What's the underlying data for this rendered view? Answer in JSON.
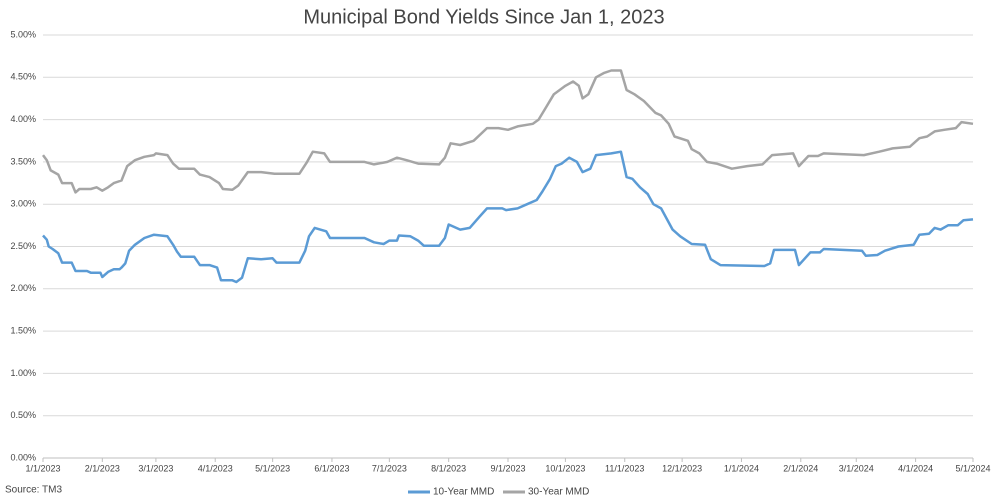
{
  "chart_data": {
    "type": "line",
    "title": "Municipal Bond Yields Since Jan 1, 2023",
    "source": "Source: TM3",
    "ylim": [
      0,
      5
    ],
    "yticks": [
      {
        "value": 0,
        "label": "0.00%"
      },
      {
        "value": 0.5,
        "label": "0.50%"
      },
      {
        "value": 1,
        "label": "1.00%"
      },
      {
        "value": 1.5,
        "label": "1.50%"
      },
      {
        "value": 2,
        "label": "2.00%"
      },
      {
        "value": 2.5,
        "label": "2.50%"
      },
      {
        "value": 3,
        "label": "3.00%"
      },
      {
        "value": 3.5,
        "label": "3.50%"
      },
      {
        "value": 4,
        "label": "4.00%"
      },
      {
        "value": 4.5,
        "label": "4.50%"
      },
      {
        "value": 5,
        "label": "5.00%"
      }
    ],
    "xlim": [
      "2023-01-01",
      "2024-05-01"
    ],
    "xticks": [
      {
        "value": "2023-01-01",
        "label": "1/1/2023"
      },
      {
        "value": "2023-02-01",
        "label": "2/1/2023"
      },
      {
        "value": "2023-03-01",
        "label": "3/1/2023"
      },
      {
        "value": "2023-04-01",
        "label": "4/1/2023"
      },
      {
        "value": "2023-05-01",
        "label": "5/1/2023"
      },
      {
        "value": "2023-06-01",
        "label": "6/1/2023"
      },
      {
        "value": "2023-07-01",
        "label": "7/1/2023"
      },
      {
        "value": "2023-08-01",
        "label": "8/1/2023"
      },
      {
        "value": "2023-09-01",
        "label": "9/1/2023"
      },
      {
        "value": "2023-10-01",
        "label": "10/1/2023"
      },
      {
        "value": "2023-11-01",
        "label": "11/1/2023"
      },
      {
        "value": "2023-12-01",
        "label": "12/1/2023"
      },
      {
        "value": "2024-01-01",
        "label": "1/1/2024"
      },
      {
        "value": "2024-02-01",
        "label": "2/1/2024"
      },
      {
        "value": "2024-03-01",
        "label": "3/1/2024"
      },
      {
        "value": "2024-04-01",
        "label": "4/1/2024"
      },
      {
        "value": "2024-05-01",
        "label": "5/1/2024"
      }
    ],
    "grid": true,
    "legend": "bottom",
    "series": [
      {
        "name": "10-Year MMD",
        "color": "#5b9bd5",
        "x": [
          "2023-01-01",
          "2023-01-03",
          "2023-01-04",
          "2023-01-06",
          "2023-01-09",
          "2023-01-11",
          "2023-01-16",
          "2023-01-18",
          "2023-01-24",
          "2023-01-26",
          "2023-01-31",
          "2023-02-01",
          "2023-02-04",
          "2023-02-07",
          "2023-02-10",
          "2023-02-11",
          "2023-02-13",
          "2023-02-15",
          "2023-02-18",
          "2023-02-23",
          "2023-02-28",
          "2023-03-07",
          "2023-03-10",
          "2023-03-12",
          "2023-03-14",
          "2023-03-21",
          "2023-03-24",
          "2023-03-29",
          "2023-04-02",
          "2023-04-04",
          "2023-04-10",
          "2023-04-12",
          "2023-04-15",
          "2023-04-18",
          "2023-04-25",
          "2023-05-01",
          "2023-05-03",
          "2023-05-15",
          "2023-05-18",
          "2023-05-20",
          "2023-05-23",
          "2023-05-29",
          "2023-05-31",
          "2023-06-18",
          "2023-06-23",
          "2023-06-28",
          "2023-07-01",
          "2023-07-05",
          "2023-07-06",
          "2023-07-12",
          "2023-07-16",
          "2023-07-19",
          "2023-07-27",
          "2023-07-30",
          "2023-08-01",
          "2023-08-07",
          "2023-08-12",
          "2023-08-17",
          "2023-08-21",
          "2023-08-29",
          "2023-08-31",
          "2023-09-06",
          "2023-09-11",
          "2023-09-16",
          "2023-09-19",
          "2023-09-23",
          "2023-09-26",
          "2023-09-29",
          "2023-10-03",
          "2023-10-07",
          "2023-10-10",
          "2023-10-14",
          "2023-10-17",
          "2023-10-25",
          "2023-10-30",
          "2023-11-02",
          "2023-11-05",
          "2023-11-09",
          "2023-11-13",
          "2023-11-16",
          "2023-11-20",
          "2023-11-26",
          "2023-11-30",
          "2023-12-06",
          "2023-12-13",
          "2023-12-16",
          "2023-12-21",
          "2024-01-13",
          "2024-01-16",
          "2024-01-18",
          "2024-01-29",
          "2024-01-31",
          "2024-02-06",
          "2024-02-11",
          "2024-02-13",
          "2024-03-04",
          "2024-03-06",
          "2024-03-12",
          "2024-03-16",
          "2024-03-23",
          "2024-03-31",
          "2024-04-03",
          "2024-04-08",
          "2024-04-11",
          "2024-04-14",
          "2024-04-18",
          "2024-04-23",
          "2024-04-26",
          "2024-05-01"
        ],
        "values": [
          2.63,
          2.58,
          2.5,
          2.47,
          2.42,
          2.31,
          2.31,
          2.21,
          2.21,
          2.19,
          2.19,
          2.14,
          2.2,
          2.23,
          2.23,
          2.25,
          2.3,
          2.45,
          2.52,
          2.6,
          2.64,
          2.62,
          2.52,
          2.44,
          2.38,
          2.38,
          2.28,
          2.28,
          2.25,
          2.1,
          2.1,
          2.08,
          2.13,
          2.36,
          2.35,
          2.36,
          2.31,
          2.31,
          2.45,
          2.62,
          2.72,
          2.68,
          2.6,
          2.6,
          2.55,
          2.53,
          2.57,
          2.57,
          2.63,
          2.62,
          2.57,
          2.51,
          2.51,
          2.6,
          2.76,
          2.7,
          2.72,
          2.85,
          2.95,
          2.95,
          2.93,
          2.95,
          3.0,
          3.05,
          3.15,
          3.3,
          3.45,
          3.48,
          3.55,
          3.5,
          3.38,
          3.42,
          3.58,
          3.6,
          3.62,
          3.32,
          3.3,
          3.2,
          3.12,
          3.0,
          2.95,
          2.7,
          2.62,
          2.53,
          2.52,
          2.35,
          2.28,
          2.27,
          2.3,
          2.46,
          2.46,
          2.28,
          2.43,
          2.43,
          2.47,
          2.45,
          2.39,
          2.4,
          2.45,
          2.5,
          2.52,
          2.64,
          2.65,
          2.72,
          2.7,
          2.75,
          2.75,
          2.81,
          2.82
        ]
      },
      {
        "name": "30-Year MMD",
        "color": "#a5a5a5",
        "x": [
          "2023-01-01",
          "2023-01-03",
          "2023-01-05",
          "2023-01-09",
          "2023-01-11",
          "2023-01-16",
          "2023-01-18",
          "2023-01-20",
          "2023-01-26",
          "2023-01-29",
          "2023-02-01",
          "2023-02-04",
          "2023-02-07",
          "2023-02-11",
          "2023-02-14",
          "2023-02-18",
          "2023-02-23",
          "2023-02-28",
          "2023-03-01",
          "2023-03-07",
          "2023-03-10",
          "2023-03-13",
          "2023-03-21",
          "2023-03-24",
          "2023-03-29",
          "2023-04-03",
          "2023-04-05",
          "2023-04-10",
          "2023-04-13",
          "2023-04-18",
          "2023-04-25",
          "2023-05-02",
          "2023-05-15",
          "2023-05-19",
          "2023-05-22",
          "2023-05-28",
          "2023-05-31",
          "2023-06-18",
          "2023-06-23",
          "2023-06-30",
          "2023-07-05",
          "2023-07-10",
          "2023-07-16",
          "2023-07-27",
          "2023-07-30",
          "2023-08-02",
          "2023-08-07",
          "2023-08-14",
          "2023-08-21",
          "2023-08-27",
          "2023-09-01",
          "2023-09-06",
          "2023-09-14",
          "2023-09-17",
          "2023-09-21",
          "2023-09-25",
          "2023-09-28",
          "2023-10-01",
          "2023-10-05",
          "2023-10-08",
          "2023-10-10",
          "2023-10-13",
          "2023-10-17",
          "2023-10-21",
          "2023-10-25",
          "2023-10-30",
          "2023-11-02",
          "2023-11-06",
          "2023-11-11",
          "2023-11-14",
          "2023-11-17",
          "2023-11-20",
          "2023-11-24",
          "2023-11-27",
          "2023-12-04",
          "2023-12-06",
          "2023-12-10",
          "2023-12-14",
          "2023-12-19",
          "2023-12-27",
          "2024-01-04",
          "2024-01-12",
          "2024-01-17",
          "2024-01-28",
          "2024-01-31",
          "2024-02-05",
          "2024-02-10",
          "2024-02-13",
          "2024-03-05",
          "2024-03-13",
          "2024-03-20",
          "2024-03-29",
          "2024-04-03",
          "2024-04-07",
          "2024-04-11",
          "2024-04-16",
          "2024-04-22",
          "2024-04-25",
          "2024-05-01"
        ],
        "values": [
          3.58,
          3.52,
          3.4,
          3.35,
          3.25,
          3.25,
          3.14,
          3.18,
          3.18,
          3.2,
          3.16,
          3.2,
          3.25,
          3.28,
          3.45,
          3.52,
          3.56,
          3.58,
          3.6,
          3.58,
          3.48,
          3.42,
          3.42,
          3.35,
          3.32,
          3.25,
          3.18,
          3.17,
          3.22,
          3.38,
          3.38,
          3.36,
          3.36,
          3.5,
          3.62,
          3.6,
          3.5,
          3.5,
          3.47,
          3.5,
          3.55,
          3.52,
          3.48,
          3.47,
          3.55,
          3.72,
          3.7,
          3.75,
          3.9,
          3.9,
          3.88,
          3.92,
          3.95,
          4.0,
          4.15,
          4.3,
          4.35,
          4.4,
          4.45,
          4.4,
          4.25,
          4.3,
          4.5,
          4.55,
          4.58,
          4.58,
          4.35,
          4.3,
          4.22,
          4.15,
          4.08,
          4.05,
          3.95,
          3.8,
          3.75,
          3.65,
          3.6,
          3.5,
          3.48,
          3.42,
          3.45,
          3.47,
          3.58,
          3.6,
          3.45,
          3.57,
          3.57,
          3.6,
          3.58,
          3.62,
          3.66,
          3.68,
          3.78,
          3.8,
          3.86,
          3.88,
          3.9,
          3.97,
          3.95
        ]
      }
    ]
  }
}
